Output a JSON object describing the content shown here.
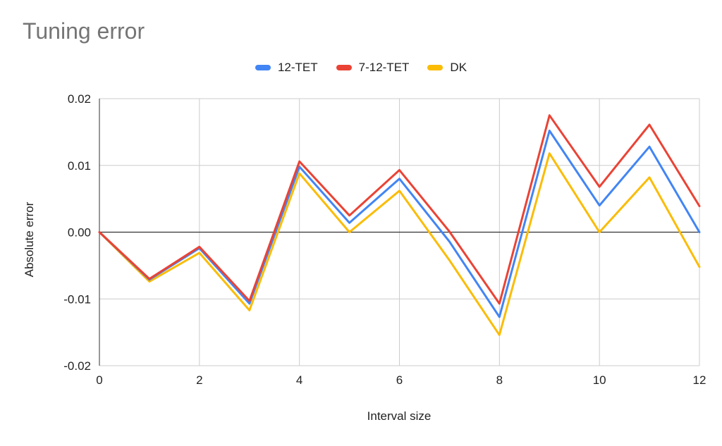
{
  "chart_data": {
    "type": "line",
    "title": "Tuning error",
    "xlabel": "Interval size",
    "ylabel": "Absolute error",
    "x": [
      0,
      1,
      2,
      3,
      4,
      5,
      6,
      7,
      8,
      9,
      10,
      11,
      12
    ],
    "xlim": [
      0,
      12
    ],
    "ylim": [
      -0.02,
      0.02
    ],
    "x_ticks": [
      "0",
      "2",
      "4",
      "6",
      "8",
      "10",
      "12"
    ],
    "y_ticks": [
      "0.02",
      "0.01",
      "0.00",
      "-0.01",
      "-0.02"
    ],
    "grid": true,
    "legend_position": "top-center",
    "series": [
      {
        "name": "12-TET",
        "color": "#4285F4",
        "values": [
          0,
          -0.0071,
          -0.0024,
          -0.0107,
          0.0098,
          0.0014,
          0.008,
          -0.0014,
          -0.0127,
          0.0152,
          0.004,
          0.0128,
          0.0
        ]
      },
      {
        "name": "7-12-TET",
        "color": "#EA4335",
        "values": [
          0,
          -0.007,
          -0.0022,
          -0.0103,
          0.0106,
          0.0025,
          0.0093,
          0.0001,
          -0.0107,
          0.0175,
          0.0068,
          0.0161,
          0.0039
        ]
      },
      {
        "name": "DK",
        "color": "#FBBC04",
        "values": [
          0,
          -0.0074,
          -0.0031,
          -0.0117,
          0.0088,
          0.0,
          0.0062,
          -0.0042,
          -0.0154,
          0.0118,
          0.0,
          0.0082,
          -0.0052
        ]
      }
    ]
  }
}
